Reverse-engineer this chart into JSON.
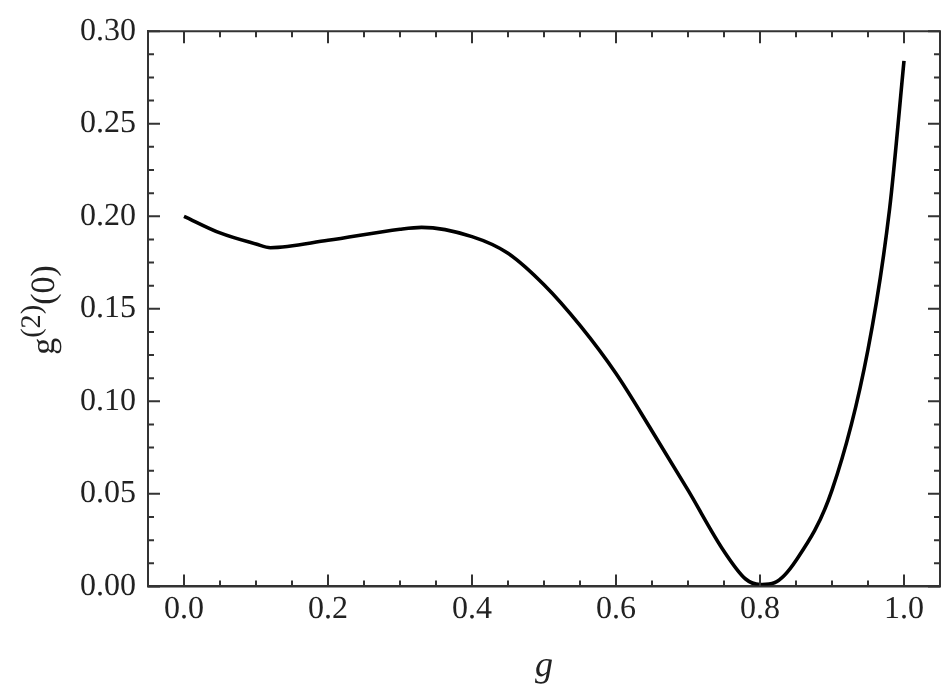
{
  "chart_data": {
    "type": "line",
    "xlabel": "g",
    "ylabel": "g$^{(2)}$(0)",
    "xlim": [
      -0.05,
      1.05
    ],
    "ylim": [
      0,
      0.3
    ],
    "xticks": [
      {
        "value": 0,
        "label": "0.0"
      },
      {
        "value": 0.2,
        "label": "0.2"
      },
      {
        "value": 0.4,
        "label": "0.4"
      },
      {
        "value": 0.6,
        "label": "0.6"
      },
      {
        "value": 0.8,
        "label": "0.8"
      },
      {
        "value": 1,
        "label": "1.0"
      }
    ],
    "yticks": [
      {
        "value": 0,
        "label": "0.00"
      },
      {
        "value": 0.05,
        "label": "0.05"
      },
      {
        "value": 0.1,
        "label": "0.10"
      },
      {
        "value": 0.15,
        "label": "0.15"
      },
      {
        "value": 0.2,
        "label": "0.20"
      },
      {
        "value": 0.25,
        "label": "0.25"
      },
      {
        "value": 0.3,
        "label": "0.30"
      }
    ],
    "grid": false,
    "legend": false,
    "marker": "none",
    "line_style": "solid",
    "series": [
      {
        "color": "#000000",
        "x": [
          0,
          0.05,
          0.1,
          0.12,
          0.2,
          0.3,
          0.33,
          0.4,
          0.45,
          0.5,
          0.55,
          0.6,
          0.65,
          0.7,
          0.75,
          0.78,
          0.8,
          0.82,
          0.85,
          0.9,
          0.95,
          0.98,
          1.0
        ],
        "values": [
          0.2,
          0.191,
          0.185,
          0.183,
          0.187,
          0.193,
          0.194,
          0.189,
          0.18,
          0.163,
          0.141,
          0.115,
          0.084,
          0.052,
          0.019,
          0.004,
          0.001,
          0.002,
          0.014,
          0.052,
          0.128,
          0.204,
          0.284
        ]
      }
    ]
  }
}
